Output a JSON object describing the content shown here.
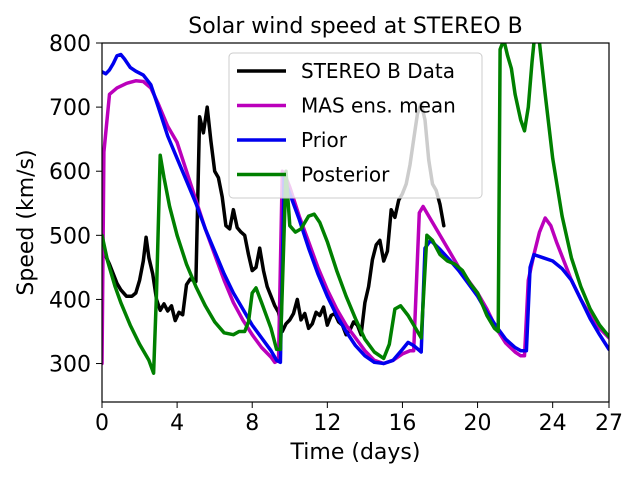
{
  "chart_data": {
    "type": "line",
    "title": "Solar wind speed at STEREO B",
    "xlabel": "Time (days)",
    "ylabel": "Speed (km/s)",
    "xlim": [
      0,
      27
    ],
    "ylim": [
      240,
      800
    ],
    "xticks": [
      0,
      4,
      8,
      12,
      16,
      20,
      24,
      27
    ],
    "yticks": [
      300,
      400,
      500,
      600,
      700,
      800
    ],
    "grid": false,
    "legend_position": "top-center",
    "series": [
      {
        "name": "STEREO B Data",
        "color": "#000000",
        "points": [
          [
            0,
            480
          ],
          [
            0.4,
            455
          ],
          [
            0.8,
            425
          ],
          [
            1.0,
            415
          ],
          [
            1.3,
            405
          ],
          [
            1.6,
            405
          ],
          [
            1.8,
            410
          ],
          [
            2.0,
            430
          ],
          [
            2.2,
            460
          ],
          [
            2.35,
            497
          ],
          [
            2.5,
            465
          ],
          [
            2.7,
            440
          ],
          [
            2.9,
            400
          ],
          [
            3.1,
            383
          ],
          [
            3.3,
            393
          ],
          [
            3.5,
            382
          ],
          [
            3.7,
            390
          ],
          [
            3.9,
            367
          ],
          [
            4.1,
            380
          ],
          [
            4.3,
            376
          ],
          [
            4.5,
            423
          ],
          [
            4.7,
            432
          ],
          [
            5.0,
            428
          ],
          [
            5.2,
            685
          ],
          [
            5.4,
            660
          ],
          [
            5.6,
            700
          ],
          [
            5.8,
            647
          ],
          [
            6.0,
            600
          ],
          [
            6.2,
            590
          ],
          [
            6.4,
            560
          ],
          [
            6.6,
            515
          ],
          [
            6.8,
            510
          ],
          [
            7.0,
            540
          ],
          [
            7.2,
            512
          ],
          [
            7.4,
            505
          ],
          [
            7.6,
            500
          ],
          [
            7.8,
            470
          ],
          [
            8.0,
            445
          ],
          [
            8.2,
            450
          ],
          [
            8.4,
            480
          ],
          [
            8.6,
            445
          ],
          [
            8.8,
            420
          ],
          [
            9.0,
            405
          ],
          [
            9.2,
            390
          ],
          [
            9.4,
            380
          ],
          [
            9.6,
            350
          ],
          [
            9.8,
            362
          ],
          [
            10.0,
            368
          ],
          [
            10.2,
            378
          ],
          [
            10.4,
            400
          ],
          [
            10.6,
            368
          ],
          [
            10.8,
            378
          ],
          [
            11.0,
            355
          ],
          [
            11.2,
            362
          ],
          [
            11.4,
            380
          ],
          [
            11.6,
            375
          ],
          [
            11.8,
            388
          ],
          [
            12.0,
            360
          ],
          [
            12.2,
            375
          ],
          [
            12.4,
            378
          ],
          [
            12.6,
            365
          ],
          [
            12.8,
            360
          ],
          [
            13.0,
            345
          ],
          [
            13.2,
            352
          ],
          [
            13.4,
            365
          ],
          [
            13.6,
            360
          ],
          [
            13.8,
            345
          ],
          [
            14.0,
            395
          ],
          [
            14.2,
            420
          ],
          [
            14.4,
            462
          ],
          [
            14.6,
            485
          ],
          [
            14.8,
            492
          ],
          [
            15.0,
            460
          ],
          [
            15.2,
            475
          ],
          [
            15.4,
            540
          ],
          [
            15.6,
            528
          ],
          [
            15.8,
            555
          ],
          [
            16.0,
            565
          ],
          [
            16.2,
            580
          ],
          [
            16.4,
            610
          ],
          [
            16.6,
            650
          ],
          [
            16.8,
            690
          ],
          [
            17.0,
            705
          ],
          [
            17.2,
            680
          ],
          [
            17.4,
            618
          ],
          [
            17.6,
            580
          ],
          [
            17.8,
            570
          ],
          [
            18.0,
            548
          ],
          [
            18.2,
            515
          ]
        ]
      },
      {
        "name": "MAS ens. mean",
        "color": "#BB00BB",
        "points": [
          [
            0,
            300
          ],
          [
            0.1,
            630
          ],
          [
            0.4,
            720
          ],
          [
            0.8,
            730
          ],
          [
            1.3,
            737
          ],
          [
            1.8,
            741
          ],
          [
            2.2,
            740
          ],
          [
            2.6,
            730
          ],
          [
            3.0,
            705
          ],
          [
            3.5,
            670
          ],
          [
            4.0,
            645
          ],
          [
            4.5,
            600
          ],
          [
            5.0,
            555
          ],
          [
            5.5,
            510
          ],
          [
            6.0,
            470
          ],
          [
            6.5,
            430
          ],
          [
            7.0,
            395
          ],
          [
            7.5,
            368
          ],
          [
            8.0,
            345
          ],
          [
            8.5,
            325
          ],
          [
            9.0,
            310
          ],
          [
            9.2,
            302
          ],
          [
            9.4,
            305
          ],
          [
            9.6,
            600
          ],
          [
            9.8,
            590
          ],
          [
            10.0,
            575
          ],
          [
            10.5,
            530
          ],
          [
            11.0,
            490
          ],
          [
            11.5,
            450
          ],
          [
            12.0,
            415
          ],
          [
            12.5,
            385
          ],
          [
            13.0,
            360
          ],
          [
            13.5,
            340
          ],
          [
            14.0,
            320
          ],
          [
            14.5,
            305
          ],
          [
            15.0,
            300
          ],
          [
            15.5,
            305
          ],
          [
            16.0,
            315
          ],
          [
            16.4,
            320
          ],
          [
            16.6,
            320
          ],
          [
            16.9,
            535
          ],
          [
            17.1,
            545
          ],
          [
            17.5,
            525
          ],
          [
            18.0,
            500
          ],
          [
            18.5,
            475
          ],
          [
            19.0,
            450
          ],
          [
            19.5,
            430
          ],
          [
            20.0,
            410
          ],
          [
            20.5,
            385
          ],
          [
            21.0,
            355
          ],
          [
            21.5,
            332
          ],
          [
            22.0,
            318
          ],
          [
            22.3,
            312
          ],
          [
            22.5,
            312
          ],
          [
            22.7,
            430
          ],
          [
            23.0,
            470
          ],
          [
            23.3,
            505
          ],
          [
            23.6,
            527
          ],
          [
            23.9,
            515
          ],
          [
            24.2,
            490
          ],
          [
            24.6,
            460
          ],
          [
            25.0,
            430
          ],
          [
            25.5,
            400
          ],
          [
            26.0,
            375
          ],
          [
            26.5,
            355
          ],
          [
            27.0,
            340
          ]
        ]
      },
      {
        "name": "Prior",
        "color": "#0000EE",
        "points": [
          [
            0,
            755
          ],
          [
            0.2,
            752
          ],
          [
            0.4,
            758
          ],
          [
            0.6,
            768
          ],
          [
            0.8,
            780
          ],
          [
            1.0,
            782
          ],
          [
            1.2,
            775
          ],
          [
            1.5,
            762
          ],
          [
            1.8,
            756
          ],
          [
            2.2,
            750
          ],
          [
            2.6,
            735
          ],
          [
            3.0,
            700
          ],
          [
            3.5,
            655
          ],
          [
            4.0,
            620
          ],
          [
            4.5,
            585
          ],
          [
            5.0,
            550
          ],
          [
            5.5,
            510
          ],
          [
            6.0,
            475
          ],
          [
            6.5,
            440
          ],
          [
            7.0,
            410
          ],
          [
            7.5,
            385
          ],
          [
            8.0,
            360
          ],
          [
            8.5,
            340
          ],
          [
            9.0,
            320
          ],
          [
            9.3,
            305
          ],
          [
            9.5,
            302
          ],
          [
            9.7,
            590
          ],
          [
            9.8,
            580
          ],
          [
            10.0,
            565
          ],
          [
            10.5,
            525
          ],
          [
            11.0,
            480
          ],
          [
            11.5,
            440
          ],
          [
            12.0,
            405
          ],
          [
            12.5,
            375
          ],
          [
            13.0,
            350
          ],
          [
            13.5,
            328
          ],
          [
            14.0,
            312
          ],
          [
            14.5,
            302
          ],
          [
            15.0,
            300
          ],
          [
            15.5,
            305
          ],
          [
            16.0,
            322
          ],
          [
            16.3,
            333
          ],
          [
            16.6,
            328
          ],
          [
            17.0,
            318
          ],
          [
            17.2,
            480
          ],
          [
            17.5,
            492
          ],
          [
            18.0,
            478
          ],
          [
            18.5,
            462
          ],
          [
            19.0,
            445
          ],
          [
            19.5,
            425
          ],
          [
            20.0,
            405
          ],
          [
            20.5,
            380
          ],
          [
            21.0,
            358
          ],
          [
            21.5,
            338
          ],
          [
            22.0,
            325
          ],
          [
            22.3,
            320
          ],
          [
            22.6,
            320
          ],
          [
            22.8,
            450
          ],
          [
            23.0,
            470
          ],
          [
            23.5,
            465
          ],
          [
            24.0,
            460
          ],
          [
            24.5,
            448
          ],
          [
            25.0,
            430
          ],
          [
            25.5,
            400
          ],
          [
            26.0,
            370
          ],
          [
            26.5,
            345
          ],
          [
            27.0,
            322
          ]
        ]
      },
      {
        "name": "Posterior",
        "color": "#008000",
        "points": [
          [
            0,
            500
          ],
          [
            0.3,
            460
          ],
          [
            0.7,
            420
          ],
          [
            1.0,
            395
          ],
          [
            1.5,
            360
          ],
          [
            2.0,
            330
          ],
          [
            2.5,
            305
          ],
          [
            2.75,
            285
          ],
          [
            2.9,
            410
          ],
          [
            3.1,
            625
          ],
          [
            3.3,
            590
          ],
          [
            3.6,
            545
          ],
          [
            4.0,
            500
          ],
          [
            4.5,
            455
          ],
          [
            5.0,
            420
          ],
          [
            5.5,
            390
          ],
          [
            6.0,
            365
          ],
          [
            6.5,
            348
          ],
          [
            7.0,
            345
          ],
          [
            7.3,
            350
          ],
          [
            7.6,
            350
          ],
          [
            7.8,
            365
          ],
          [
            8.0,
            410
          ],
          [
            8.2,
            418
          ],
          [
            8.5,
            395
          ],
          [
            9.0,
            355
          ],
          [
            9.3,
            322
          ],
          [
            9.5,
            322
          ],
          [
            9.8,
            600
          ],
          [
            10.0,
            515
          ],
          [
            10.3,
            505
          ],
          [
            10.6,
            510
          ],
          [
            11.0,
            530
          ],
          [
            11.3,
            533
          ],
          [
            11.6,
            520
          ],
          [
            12.0,
            490
          ],
          [
            12.5,
            445
          ],
          [
            13.0,
            405
          ],
          [
            13.5,
            370
          ],
          [
            14.0,
            338
          ],
          [
            14.5,
            318
          ],
          [
            15.0,
            308
          ],
          [
            15.3,
            330
          ],
          [
            15.6,
            385
          ],
          [
            15.9,
            390
          ],
          [
            16.3,
            375
          ],
          [
            16.7,
            355
          ],
          [
            17.0,
            340
          ],
          [
            17.3,
            500
          ],
          [
            17.6,
            492
          ],
          [
            18.0,
            470
          ],
          [
            18.4,
            460
          ],
          [
            18.8,
            455
          ],
          [
            19.2,
            445
          ],
          [
            19.6,
            425
          ],
          [
            20.0,
            410
          ],
          [
            20.5,
            375
          ],
          [
            20.9,
            355
          ],
          [
            21.1,
            350
          ],
          [
            21.2,
            790
          ],
          [
            21.4,
            805
          ],
          [
            21.6,
            780
          ],
          [
            21.8,
            760
          ],
          [
            22.0,
            720
          ],
          [
            22.3,
            680
          ],
          [
            22.5,
            663
          ],
          [
            22.7,
            700
          ],
          [
            22.9,
            770
          ],
          [
            23.1,
            830
          ],
          [
            23.3,
            800
          ],
          [
            23.6,
            720
          ],
          [
            24.0,
            620
          ],
          [
            24.5,
            530
          ],
          [
            25.0,
            465
          ],
          [
            25.5,
            420
          ],
          [
            26.0,
            385
          ],
          [
            26.5,
            360
          ],
          [
            27.0,
            342
          ]
        ]
      }
    ]
  }
}
